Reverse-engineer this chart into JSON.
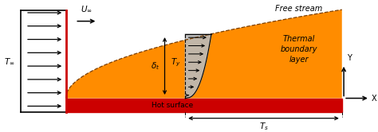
{
  "fig_width": 4.74,
  "fig_height": 1.66,
  "dpi": 100,
  "bg_color": "#ffffff",
  "orange_color": "#FF8C00",
  "red_color": "#CC0000",
  "gray_color": "#BBBBBB",
  "text_free_stream": "Free stream",
  "text_thermal_bl": "Thermal\nboundary\nlayer",
  "text_hot_surface": "Hot surface",
  "text_U": "$U_{\\infty}$",
  "text_T_inf": "$T_{\\infty}$",
  "text_delta_t": "$\\delta_t$",
  "text_T_y": "$T_y$",
  "text_T_s": "$T_s$",
  "text_Y": "Y",
  "text_X": "X"
}
